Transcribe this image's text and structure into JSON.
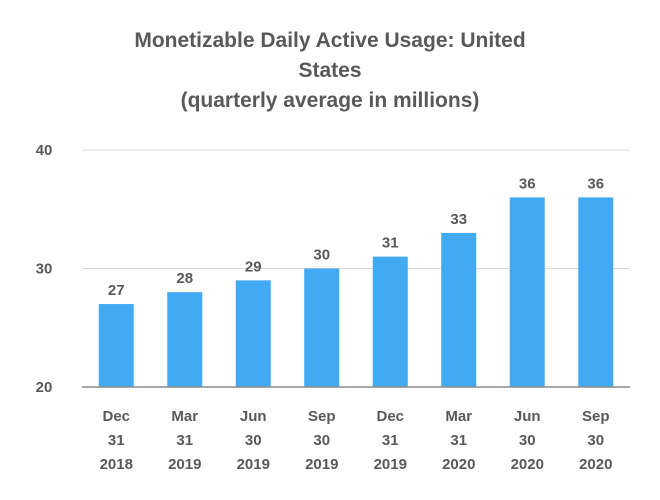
{
  "chart_data": {
    "type": "bar",
    "title_lines": [
      "Monetizable Daily Active Usage: United",
      "States",
      "(quarterly average in millions)"
    ],
    "categories": [
      [
        "Dec",
        "31",
        "2018"
      ],
      [
        "Mar",
        "31",
        "2019"
      ],
      [
        "Jun",
        "30",
        "2019"
      ],
      [
        "Sep",
        "30",
        "2019"
      ],
      [
        "Dec",
        "31",
        "2019"
      ],
      [
        "Mar",
        "31",
        "2020"
      ],
      [
        "Jun",
        "30",
        "2020"
      ],
      [
        "Sep",
        "30",
        "2020"
      ]
    ],
    "values": [
      27,
      28,
      29,
      30,
      31,
      33,
      36,
      36
    ],
    "yticks": [
      "20",
      "30",
      "40"
    ],
    "ylim": [
      20,
      40
    ],
    "xlabel": "",
    "ylabel": "",
    "grid": true,
    "bar_color": "#41aaf2",
    "legend": "none"
  }
}
